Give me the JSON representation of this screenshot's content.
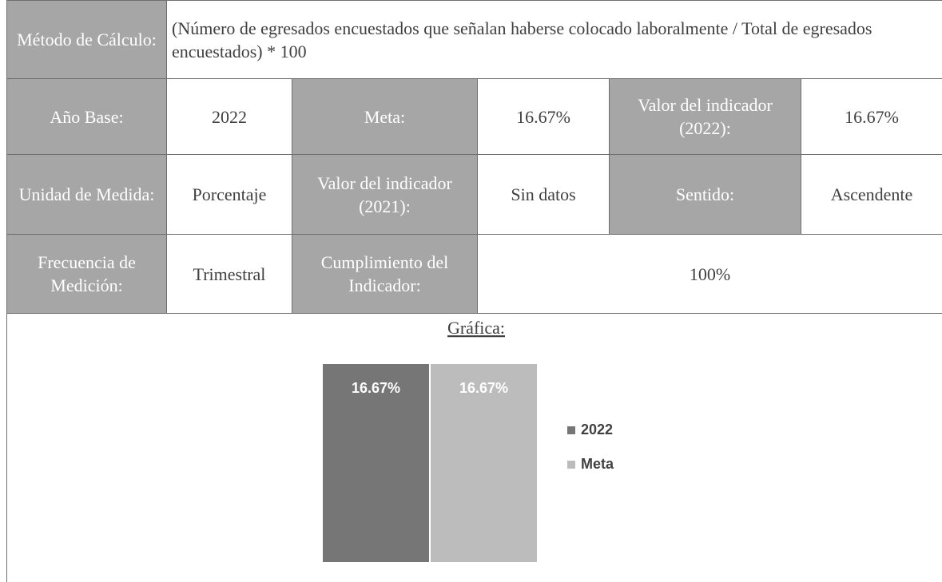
{
  "table": {
    "rows": [
      [
        "Método de Cálculo:",
        "(Número de egresados encuestados que señalan haberse colocado laboralmente / Total de egresados encuestados) * 100"
      ],
      [
        "Año Base:",
        "2022",
        "Meta:",
        "16.67%",
        "Valor del indicador (2022):",
        "16.67%"
      ],
      [
        "Unidad de Medida:",
        "Porcentaje",
        "Valor del indicador (2021):",
        "Sin datos",
        "Sentido:",
        "Ascendente"
      ],
      [
        "Frecuencia de Medición:",
        "Trimestral",
        "Cumplimiento del Indicador:",
        "100%"
      ]
    ]
  },
  "chart_data": {
    "type": "bar",
    "title": "Gráfica:",
    "series": [
      {
        "name": "2022",
        "color": "#767676",
        "values": [
          16.67
        ],
        "value_labels": [
          "16.67%"
        ]
      },
      {
        "name": "Meta",
        "color": "#bcbcbc",
        "values": [
          16.67
        ],
        "value_labels": [
          "16.67%"
        ]
      }
    ]
  }
}
